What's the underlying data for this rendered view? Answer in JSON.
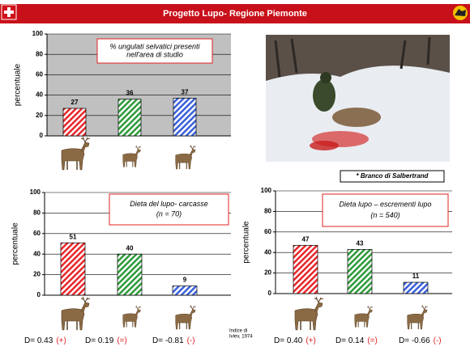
{
  "header": {
    "title": "Progetto Lupo- Regione Piemonte"
  },
  "photo_caption": "* Branco di Salbertrand",
  "ivlev_note": [
    "Indice di",
    "Ivlev, 1974"
  ],
  "indices": [
    {
      "label": "D= 0.43",
      "sign": "(+)"
    },
    {
      "label": "D= 0.19",
      "sign": "(=)"
    },
    {
      "label": "D= -0.81",
      "sign": "(-)"
    },
    {
      "label": "D= 0.40",
      "sign": "(+)"
    },
    {
      "label": "D= 0.14",
      "sign": "(=)"
    },
    {
      "label": "D= -0.66",
      "sign": "(-)"
    }
  ],
  "chart_data": [
    {
      "type": "bar",
      "ylabel": "percentuale",
      "annotation": [
        "% ungulati selvatici presenti",
        "nell'area di studio"
      ],
      "categories": [
        null,
        null,
        null
      ],
      "values": [
        27,
        36,
        37
      ],
      "colors": [
        "#e8262a",
        "#2e9a3a",
        "#3a5fd8"
      ],
      "ylim": [
        0,
        100
      ],
      "yticks": [
        0,
        20,
        40,
        60,
        80,
        100
      ],
      "grid": true,
      "background": "#c0c0c0"
    },
    {
      "type": "bar",
      "ylabel": "percentuale",
      "annotation": [
        "Dieta del lupo- carcasse",
        "(n = 70)"
      ],
      "categories": [
        null,
        null,
        null
      ],
      "values": [
        51,
        40,
        9
      ],
      "colors": [
        "#e8262a",
        "#2e9a3a",
        "#3a5fd8"
      ],
      "ylim": [
        0,
        100
      ],
      "yticks": [
        0,
        20,
        40,
        60,
        80,
        100
      ],
      "grid": true,
      "background": "#ffffff"
    },
    {
      "type": "bar",
      "ylabel": "percentuale",
      "annotation": [
        "Dieta lupo – escrementi lupo",
        "(n = 540)"
      ],
      "categories": [
        null,
        null,
        null
      ],
      "values": [
        47,
        43,
        11
      ],
      "colors": [
        "#e8262a",
        "#2e9a3a",
        "#3a5fd8"
      ],
      "ylim": [
        0,
        100
      ],
      "yticks": [
        0,
        20,
        40,
        60,
        80,
        100
      ],
      "grid": true,
      "background": "#ffffff"
    }
  ]
}
